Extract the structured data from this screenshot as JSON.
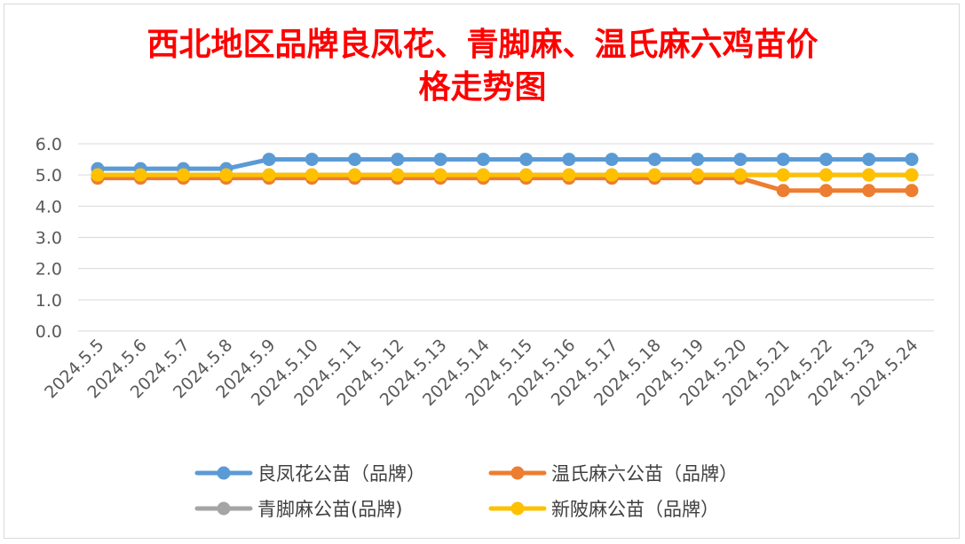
{
  "chart_data": {
    "type": "line",
    "title_line1": "西北地区品牌良凤花、青脚麻、温氏麻六鸡苗价",
    "title_line2": "格走势图",
    "categories": [
      "2024.5.5",
      "2024.5.6",
      "2024.5.7",
      "2024.5.8",
      "2024.5.9",
      "2024.5.10",
      "2024.5.11",
      "2024.5.12",
      "2024.5.13",
      "2024.5.14",
      "2024.5.15",
      "2024.5.16",
      "2024.5.17",
      "2024.5.18",
      "2024.5.19",
      "2024.5.20",
      "2024.5.21",
      "2024.5.22",
      "2024.5.23",
      "2024.5.24"
    ],
    "y_ticks": [
      "0.0",
      "1.0",
      "2.0",
      "3.0",
      "4.0",
      "5.0",
      "6.0"
    ],
    "ylim": [
      0,
      6
    ],
    "grid": true,
    "legend_position": "bottom",
    "series": [
      {
        "name": "良凤花公苗（品牌）",
        "color": "#5b9bd5",
        "values": [
          5.2,
          5.2,
          5.2,
          5.2,
          5.5,
          5.5,
          5.5,
          5.5,
          5.5,
          5.5,
          5.5,
          5.5,
          5.5,
          5.5,
          5.5,
          5.5,
          5.5,
          5.5,
          5.5,
          5.5
        ]
      },
      {
        "name": "温氏麻六公苗（品牌）",
        "color": "#ed7d31",
        "values": [
          4.9,
          4.9,
          4.9,
          4.9,
          4.9,
          4.9,
          4.9,
          4.9,
          4.9,
          4.9,
          4.9,
          4.9,
          4.9,
          4.9,
          4.9,
          4.9,
          4.5,
          4.5,
          4.5,
          4.5
        ]
      },
      {
        "name": "青脚麻公苗(品牌)",
        "color": "#a5a5a5",
        "values": [
          5.0,
          5.0,
          5.0,
          5.0,
          5.0,
          5.0,
          5.0,
          5.0,
          5.0,
          5.0,
          5.0,
          5.0,
          5.0,
          5.0,
          5.0,
          5.0,
          5.0,
          5.0,
          5.0,
          5.0
        ]
      },
      {
        "name": "新陂麻公苗（品牌）",
        "color": "#ffc000",
        "values": [
          5.0,
          5.0,
          5.0,
          5.0,
          5.0,
          5.0,
          5.0,
          5.0,
          5.0,
          5.0,
          5.0,
          5.0,
          5.0,
          5.0,
          5.0,
          5.0,
          5.0,
          5.0,
          5.0,
          5.0
        ]
      }
    ]
  }
}
